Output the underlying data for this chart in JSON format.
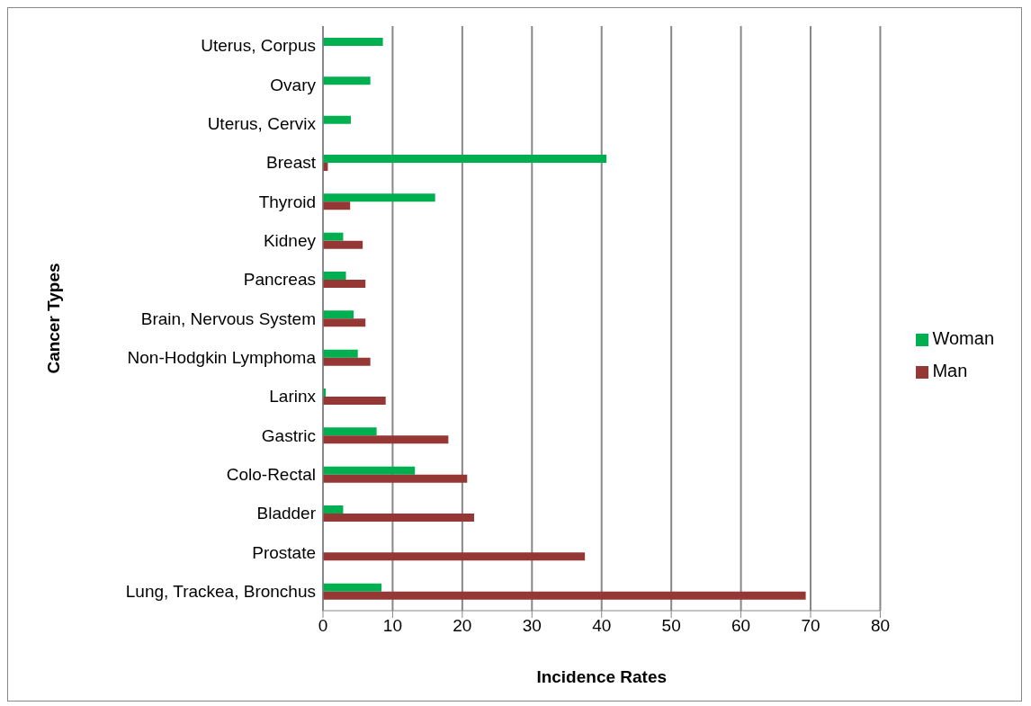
{
  "chart_data": {
    "type": "bar",
    "orientation": "horizontal",
    "xlabel": "Incidence Rates",
    "ylabel": "Cancer Types",
    "categories": [
      "Uterus, Corpus",
      "Ovary",
      "Uterus, Cervix",
      "Breast",
      "Thyroid",
      "Kidney",
      "Pancreas",
      "Brain, Nervous System",
      "Non-Hodgkin Lymphoma",
      "Larinx",
      "Gastric",
      "Colo-Rectal",
      "Bladder",
      "Prostate",
      "Lung, Trackea, Bronchus"
    ],
    "series": [
      {
        "name": "Woman",
        "color": "#00b050",
        "values": [
          8.6,
          6.8,
          4.0,
          40.7,
          16.1,
          2.9,
          3.3,
          4.4,
          5.0,
          0.4,
          7.7,
          13.2,
          2.9,
          null,
          8.4
        ]
      },
      {
        "name": "Man",
        "color": "#953735",
        "values": [
          null,
          null,
          null,
          0.7,
          3.9,
          5.7,
          6.1,
          6.1,
          6.8,
          9.0,
          18.0,
          20.7,
          21.7,
          37.6,
          69.3
        ]
      }
    ],
    "xlim": [
      0,
      80
    ],
    "xticks": [
      0,
      10,
      20,
      30,
      40,
      50,
      60,
      70,
      80
    ],
    "grid": "x",
    "legend": "right"
  }
}
